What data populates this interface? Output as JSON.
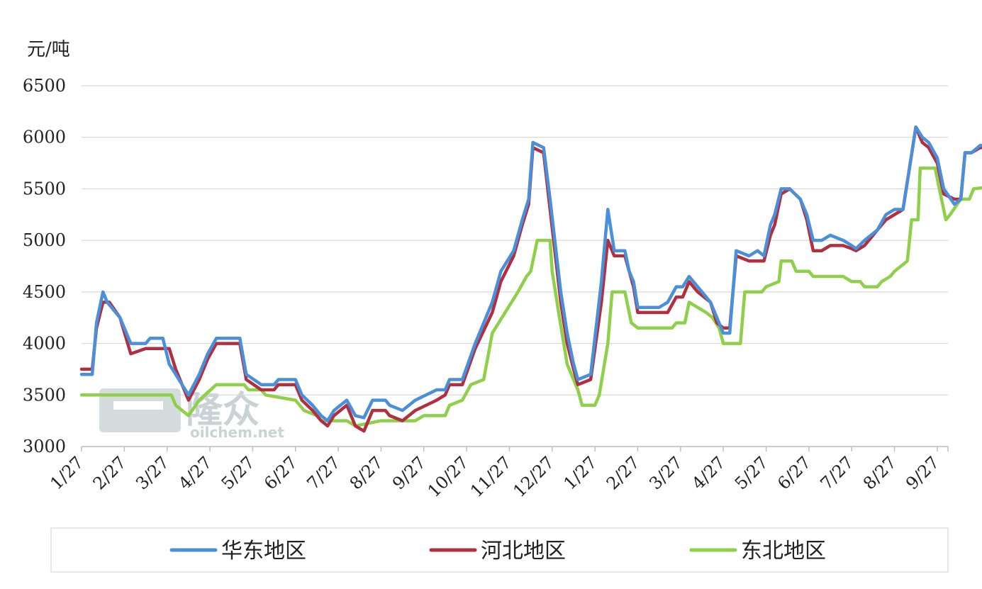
{
  "chart_data": {
    "type": "line",
    "title": "",
    "xlabel": "",
    "ylabel": "元/吨",
    "ylim": [
      3000,
      6500
    ],
    "y_ticks": [
      3000,
      3500,
      4000,
      4500,
      5000,
      5500,
      6000,
      6500
    ],
    "x_ticks": [
      "1/27",
      "2/27",
      "3/27",
      "4/27",
      "5/27",
      "6/27",
      "7/27",
      "8/27",
      "9/27",
      "10/27",
      "11/27",
      "12/27",
      "1/27",
      "2/27",
      "3/27",
      "4/27",
      "5/27",
      "6/27",
      "7/27",
      "8/27",
      "9/27"
    ],
    "grid": "horizontal",
    "legend_position": "bottom",
    "watermark": {
      "text": "隆众",
      "subtext": "oilchem.net"
    },
    "series": [
      {
        "name": "华东地区",
        "color": "#4a8fd9",
        "points": [
          [
            0,
            3700
          ],
          [
            0.25,
            3700
          ],
          [
            0.35,
            4200
          ],
          [
            0.5,
            4500
          ],
          [
            0.6,
            4400
          ],
          [
            0.9,
            4250
          ],
          [
            1.15,
            4000
          ],
          [
            1.5,
            4000
          ],
          [
            1.6,
            4050
          ],
          [
            1.9,
            4050
          ],
          [
            2.05,
            3800
          ],
          [
            2.2,
            3700
          ],
          [
            2.5,
            3500
          ],
          [
            2.75,
            3700
          ],
          [
            2.95,
            3900
          ],
          [
            3.15,
            4050
          ],
          [
            3.7,
            4050
          ],
          [
            3.85,
            3700
          ],
          [
            4.2,
            3600
          ],
          [
            4.5,
            3600
          ],
          [
            4.6,
            3650
          ],
          [
            5.0,
            3650
          ],
          [
            5.15,
            3500
          ],
          [
            5.4,
            3400
          ],
          [
            5.6,
            3300
          ],
          [
            5.75,
            3250
          ],
          [
            5.9,
            3350
          ],
          [
            6.2,
            3450
          ],
          [
            6.4,
            3300
          ],
          [
            6.6,
            3280
          ],
          [
            6.8,
            3450
          ],
          [
            7.1,
            3450
          ],
          [
            7.2,
            3400
          ],
          [
            7.5,
            3350
          ],
          [
            7.8,
            3450
          ],
          [
            8.3,
            3550
          ],
          [
            8.5,
            3550
          ],
          [
            8.6,
            3650
          ],
          [
            8.9,
            3650
          ],
          [
            9.2,
            4000
          ],
          [
            9.6,
            4400
          ],
          [
            9.8,
            4700
          ],
          [
            10.1,
            4900
          ],
          [
            10.3,
            5200
          ],
          [
            10.45,
            5400
          ],
          [
            10.55,
            5950
          ],
          [
            10.8,
            5900
          ],
          [
            10.95,
            5400
          ],
          [
            11.2,
            4500
          ],
          [
            11.35,
            4100
          ],
          [
            11.5,
            3800
          ],
          [
            11.6,
            3650
          ],
          [
            11.9,
            3700
          ],
          [
            12.15,
            4600
          ],
          [
            12.3,
            5300
          ],
          [
            12.45,
            4900
          ],
          [
            12.7,
            4900
          ],
          [
            12.8,
            4700
          ],
          [
            12.9,
            4600
          ],
          [
            13.0,
            4350
          ],
          [
            13.2,
            4350
          ],
          [
            13.5,
            4350
          ],
          [
            13.7,
            4400
          ],
          [
            13.9,
            4550
          ],
          [
            14.05,
            4550
          ],
          [
            14.2,
            4650
          ],
          [
            14.4,
            4550
          ],
          [
            14.7,
            4400
          ],
          [
            14.85,
            4250
          ],
          [
            15.0,
            4100
          ],
          [
            15.15,
            4100
          ],
          [
            15.3,
            4900
          ],
          [
            15.6,
            4850
          ],
          [
            15.8,
            4900
          ],
          [
            15.95,
            4850
          ],
          [
            16.1,
            5150
          ],
          [
            16.2,
            5250
          ],
          [
            16.35,
            5500
          ],
          [
            16.55,
            5500
          ],
          [
            16.8,
            5400
          ],
          [
            16.95,
            5250
          ],
          [
            17.1,
            5000
          ],
          [
            17.3,
            5000
          ],
          [
            17.5,
            5050
          ],
          [
            17.8,
            5000
          ],
          [
            18.0,
            4950
          ],
          [
            18.1,
            4920
          ],
          [
            18.3,
            5000
          ],
          [
            18.6,
            5100
          ],
          [
            18.8,
            5250
          ],
          [
            19.0,
            5300
          ],
          [
            19.2,
            5300
          ],
          [
            19.35,
            5700
          ],
          [
            19.5,
            6100
          ],
          [
            19.65,
            6000
          ],
          [
            19.8,
            5950
          ],
          [
            20.0,
            5800
          ],
          [
            20.15,
            5500
          ],
          [
            20.4,
            5350
          ],
          [
            20.55,
            5400
          ],
          [
            20.65,
            5850
          ],
          [
            20.8,
            5850
          ],
          [
            21.0,
            5920
          ],
          [
            21.25,
            5920
          ]
        ]
      },
      {
        "name": "河北地区",
        "color": "#b03040",
        "points": [
          [
            0,
            3750
          ],
          [
            0.25,
            3750
          ],
          [
            0.35,
            4150
          ],
          [
            0.5,
            4400
          ],
          [
            0.65,
            4400
          ],
          [
            0.9,
            4250
          ],
          [
            1.15,
            3900
          ],
          [
            1.5,
            3950
          ],
          [
            1.6,
            3950
          ],
          [
            2.05,
            3950
          ],
          [
            2.2,
            3750
          ],
          [
            2.5,
            3450
          ],
          [
            2.75,
            3650
          ],
          [
            2.95,
            3850
          ],
          [
            3.15,
            4000
          ],
          [
            3.7,
            4000
          ],
          [
            3.85,
            3650
          ],
          [
            4.2,
            3550
          ],
          [
            4.5,
            3550
          ],
          [
            4.6,
            3600
          ],
          [
            5.0,
            3600
          ],
          [
            5.15,
            3450
          ],
          [
            5.4,
            3350
          ],
          [
            5.6,
            3250
          ],
          [
            5.75,
            3200
          ],
          [
            5.9,
            3300
          ],
          [
            6.2,
            3400
          ],
          [
            6.4,
            3200
          ],
          [
            6.6,
            3150
          ],
          [
            6.8,
            3350
          ],
          [
            7.1,
            3350
          ],
          [
            7.2,
            3300
          ],
          [
            7.5,
            3250
          ],
          [
            7.8,
            3350
          ],
          [
            8.3,
            3450
          ],
          [
            8.5,
            3500
          ],
          [
            8.6,
            3600
          ],
          [
            8.9,
            3600
          ],
          [
            9.2,
            3950
          ],
          [
            9.6,
            4300
          ],
          [
            9.8,
            4600
          ],
          [
            10.1,
            4850
          ],
          [
            10.3,
            5150
          ],
          [
            10.45,
            5350
          ],
          [
            10.55,
            5900
          ],
          [
            10.8,
            5850
          ],
          [
            10.95,
            5300
          ],
          [
            11.2,
            4400
          ],
          [
            11.35,
            4000
          ],
          [
            11.5,
            3750
          ],
          [
            11.6,
            3600
          ],
          [
            11.9,
            3650
          ],
          [
            12.15,
            4400
          ],
          [
            12.3,
            5000
          ],
          [
            12.45,
            4850
          ],
          [
            12.7,
            4850
          ],
          [
            12.8,
            4700
          ],
          [
            12.9,
            4550
          ],
          [
            13.0,
            4300
          ],
          [
            13.2,
            4300
          ],
          [
            13.5,
            4300
          ],
          [
            13.7,
            4300
          ],
          [
            13.9,
            4450
          ],
          [
            14.05,
            4450
          ],
          [
            14.2,
            4600
          ],
          [
            14.4,
            4500
          ],
          [
            14.7,
            4400
          ],
          [
            14.85,
            4200
          ],
          [
            15.0,
            4150
          ],
          [
            15.15,
            4150
          ],
          [
            15.3,
            4850
          ],
          [
            15.6,
            4800
          ],
          [
            15.8,
            4800
          ],
          [
            15.95,
            4800
          ],
          [
            16.1,
            5050
          ],
          [
            16.2,
            5150
          ],
          [
            16.35,
            5450
          ],
          [
            16.55,
            5500
          ],
          [
            16.8,
            5400
          ],
          [
            16.95,
            5200
          ],
          [
            17.1,
            4900
          ],
          [
            17.3,
            4900
          ],
          [
            17.5,
            4950
          ],
          [
            17.8,
            4950
          ],
          [
            18.0,
            4920
          ],
          [
            18.1,
            4900
          ],
          [
            18.3,
            4950
          ],
          [
            18.6,
            5100
          ],
          [
            18.8,
            5200
          ],
          [
            19.0,
            5250
          ],
          [
            19.2,
            5300
          ],
          [
            19.35,
            5700
          ],
          [
            19.5,
            6100
          ],
          [
            19.65,
            5950
          ],
          [
            19.8,
            5900
          ],
          [
            20.0,
            5750
          ],
          [
            20.15,
            5450
          ],
          [
            20.4,
            5400
          ],
          [
            20.55,
            5400
          ],
          [
            20.65,
            5850
          ],
          [
            20.8,
            5850
          ],
          [
            21.0,
            5900
          ],
          [
            21.25,
            5900
          ]
        ]
      },
      {
        "name": "东北地区",
        "color": "#8ed04a",
        "points": [
          [
            0,
            3500
          ],
          [
            2.1,
            3500
          ],
          [
            2.2,
            3400
          ],
          [
            2.5,
            3300
          ],
          [
            2.75,
            3450
          ],
          [
            3.15,
            3600
          ],
          [
            3.8,
            3600
          ],
          [
            3.9,
            3550
          ],
          [
            4.2,
            3550
          ],
          [
            4.3,
            3500
          ],
          [
            5.0,
            3450
          ],
          [
            5.2,
            3350
          ],
          [
            5.5,
            3300
          ],
          [
            5.6,
            3250
          ],
          [
            6.2,
            3250
          ],
          [
            6.4,
            3200
          ],
          [
            7.0,
            3250
          ],
          [
            7.8,
            3250
          ],
          [
            8.0,
            3300
          ],
          [
            8.5,
            3300
          ],
          [
            8.6,
            3400
          ],
          [
            8.9,
            3450
          ],
          [
            9.1,
            3600
          ],
          [
            9.4,
            3650
          ],
          [
            9.6,
            4100
          ],
          [
            9.9,
            4300
          ],
          [
            10.2,
            4500
          ],
          [
            10.4,
            4650
          ],
          [
            10.5,
            4700
          ],
          [
            10.65,
            5000
          ],
          [
            10.95,
            5000
          ],
          [
            11.0,
            4700
          ],
          [
            11.15,
            4300
          ],
          [
            11.35,
            3800
          ],
          [
            11.6,
            3550
          ],
          [
            11.7,
            3400
          ],
          [
            12.0,
            3400
          ],
          [
            12.1,
            3500
          ],
          [
            12.3,
            4000
          ],
          [
            12.4,
            4500
          ],
          [
            12.7,
            4500
          ],
          [
            12.85,
            4200
          ],
          [
            13.0,
            4150
          ],
          [
            13.8,
            4150
          ],
          [
            13.9,
            4200
          ],
          [
            14.1,
            4200
          ],
          [
            14.2,
            4400
          ],
          [
            14.6,
            4300
          ],
          [
            14.75,
            4250
          ],
          [
            14.9,
            4150
          ],
          [
            15.0,
            4000
          ],
          [
            15.4,
            4000
          ],
          [
            15.5,
            4500
          ],
          [
            15.9,
            4500
          ],
          [
            16.0,
            4550
          ],
          [
            16.3,
            4600
          ],
          [
            16.35,
            4800
          ],
          [
            16.6,
            4800
          ],
          [
            16.7,
            4700
          ],
          [
            17.0,
            4700
          ],
          [
            17.1,
            4650
          ],
          [
            17.8,
            4650
          ],
          [
            18.0,
            4600
          ],
          [
            18.2,
            4600
          ],
          [
            18.3,
            4550
          ],
          [
            18.6,
            4550
          ],
          [
            18.7,
            4600
          ],
          [
            18.9,
            4650
          ],
          [
            19.0,
            4700
          ],
          [
            19.3,
            4800
          ],
          [
            19.4,
            5200
          ],
          [
            19.55,
            5200
          ],
          [
            19.6,
            5700
          ],
          [
            19.95,
            5700
          ],
          [
            20.1,
            5400
          ],
          [
            20.2,
            5200
          ],
          [
            20.3,
            5250
          ],
          [
            20.55,
            5400
          ],
          [
            20.75,
            5400
          ],
          [
            20.85,
            5500
          ],
          [
            21.25,
            5520
          ]
        ]
      }
    ]
  }
}
